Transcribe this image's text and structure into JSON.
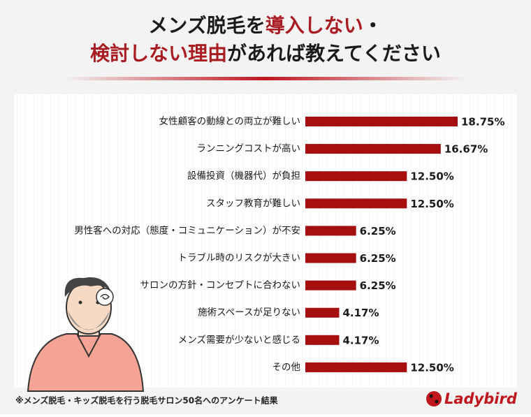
{
  "chart_data": {
    "type": "bar",
    "orientation": "horizontal",
    "title_lines": [
      [
        {
          "text": "メンズ脱毛を",
          "highlight": false
        },
        {
          "text": "導入しない",
          "highlight": true
        },
        {
          "text": "・",
          "highlight": false
        }
      ],
      [
        {
          "text": "検討しない理由",
          "highlight": true
        },
        {
          "text": "があれば教えてください",
          "highlight": false
        }
      ]
    ],
    "highlight_color": "#a81c22",
    "categories": [
      "女性顧客の動線との両立が難しい",
      "ランニングコストが高い",
      "設備投資（機器代）が負担",
      "スタッフ教育が難しい",
      "男性客への対応（態度・コミュニケーション）が不安",
      "トラブル時のリスクが大きい",
      "サロンの方針・コンセプトに合わない",
      "施術スペースが足りない",
      "メンズ需要が少ないと感じる",
      "その他"
    ],
    "values": [
      18.75,
      16.67,
      12.5,
      12.5,
      6.25,
      6.25,
      6.25,
      4.17,
      4.17,
      12.5
    ],
    "value_labels": [
      "18.75%",
      "16.67%",
      "12.50%",
      "12.50%",
      "6.25%",
      "6.25%",
      "6.25%",
      "4.17%",
      "4.17%",
      "12.50%"
    ],
    "color": "#a50f0f",
    "footnote": "※メンズ脱毛・キッズ脱毛を行う脱毛サロン50名へのアンケート結果",
    "logo": "Ladybird"
  }
}
